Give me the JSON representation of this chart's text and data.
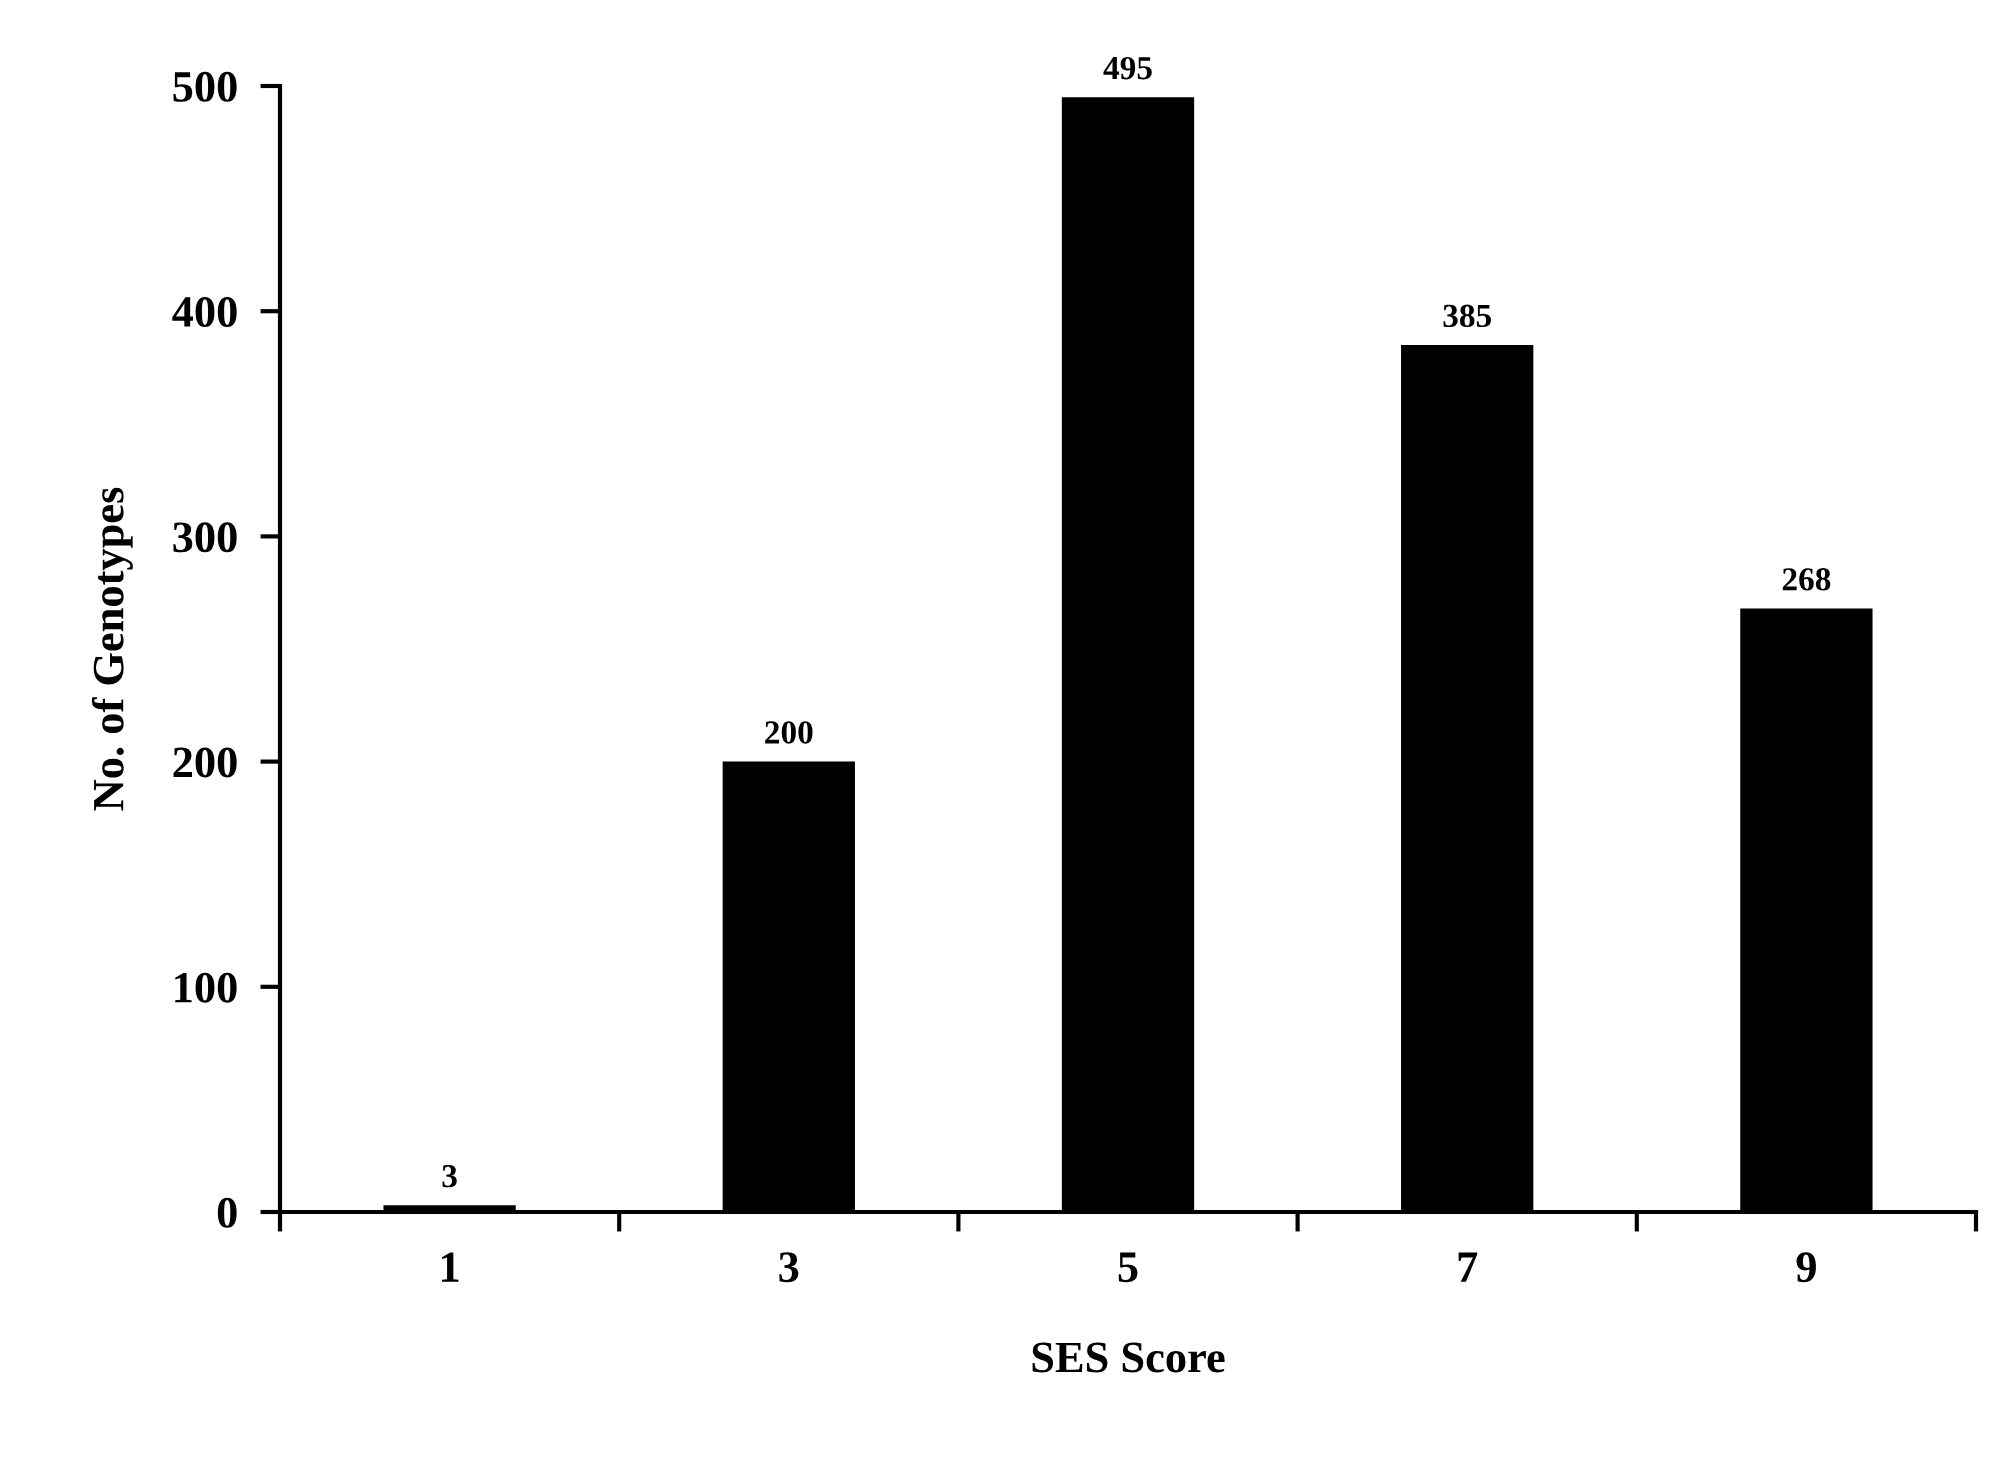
{
  "chart_data": {
    "type": "bar",
    "xlabel": "SES Score",
    "ylabel": "No. of Genotypes",
    "categories": [
      "1",
      "3",
      "5",
      "7",
      "9"
    ],
    "values": [
      3,
      200,
      495,
      385,
      268
    ],
    "color": "#000000",
    "ylim": [
      0,
      500
    ],
    "yticks": [
      0,
      100,
      200,
      300,
      400,
      500
    ],
    "data_labels": true,
    "grid": false,
    "legend": false
  }
}
